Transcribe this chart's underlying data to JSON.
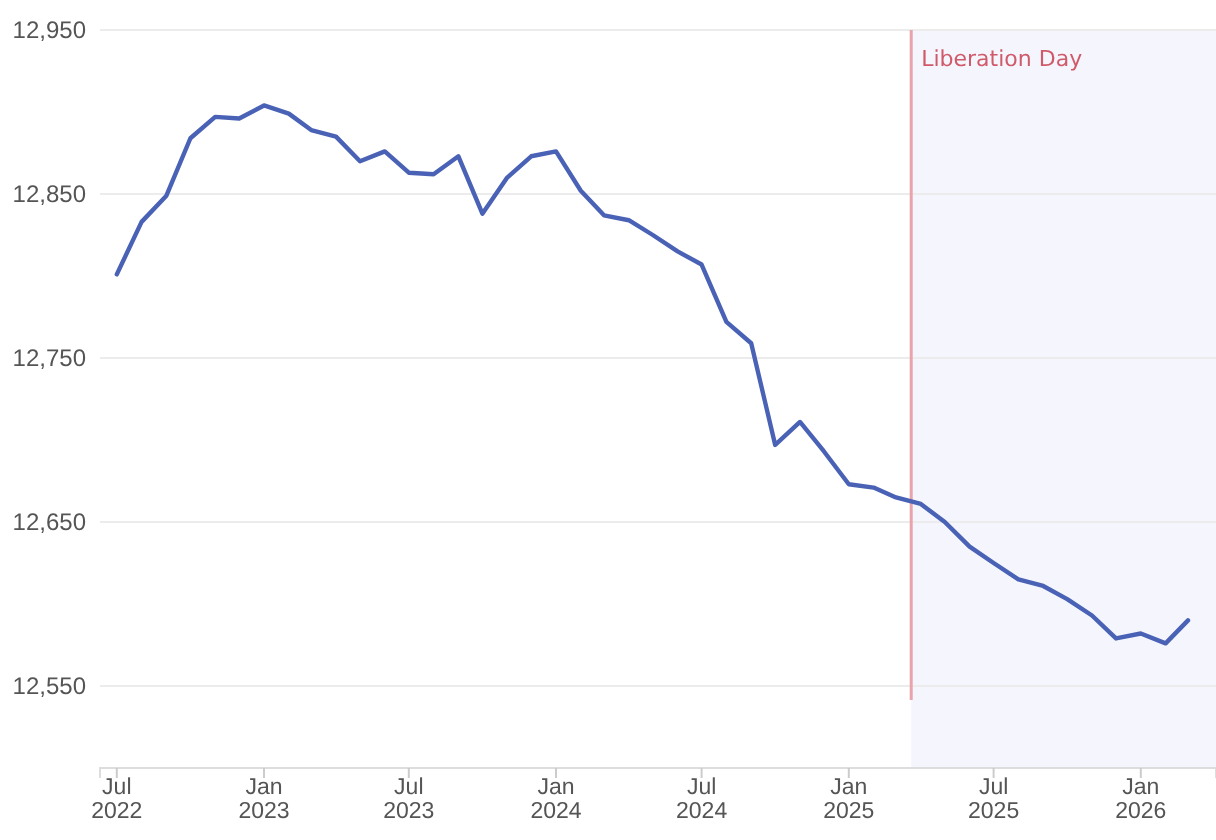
{
  "chart_data": {
    "type": "line",
    "x": [
      "2022-07",
      "2022-08",
      "2022-09",
      "2022-10",
      "2022-11",
      "2022-12",
      "2023-01",
      "2023-02",
      "2023-03",
      "2023-04",
      "2023-05",
      "2023-06",
      "2023-07",
      "2023-08",
      "2023-09",
      "2023-10",
      "2023-11",
      "2023-12",
      "2024-01",
      "2024-02",
      "2024-03",
      "2024-04",
      "2024-05",
      "2024-06",
      "2024-07",
      "2024-08",
      "2024-09",
      "2024-10",
      "2024-11",
      "2024-12",
      "2025-01",
      "2025-02",
      "2025-03",
      "2025-04",
      "2025-05",
      "2025-06",
      "2025-07",
      "2025-08",
      "2025-09",
      "2025-10",
      "2025-11",
      "2025-12",
      "2026-01",
      "2026-02",
      "2026-03"
    ],
    "series": [
      {
        "color": "#4a62b5",
        "values": [
          12801,
          12833,
          12849,
          12884,
          12897,
          12896,
          12904,
          12899,
          12889,
          12885,
          12870,
          12876,
          12863,
          12862,
          12873,
          12838,
          12860,
          12873,
          12876,
          12852,
          12837,
          12834,
          12825,
          12815,
          12807,
          12772,
          12759,
          12697,
          12711,
          12693,
          12673,
          12671,
          12665,
          12661,
          12650,
          12635,
          12625,
          12615,
          12611,
          12603,
          12593,
          12579,
          12582,
          12576,
          12590
        ]
      }
    ],
    "xlim": [
      "2022-06-10",
      "2026-04-05"
    ],
    "ylim": [
      12500,
      12950
    ],
    "xticks": [
      {
        "value": "2022-07",
        "label": "Jul 2022"
      },
      {
        "value": "2023-01",
        "label": "Jan 2023"
      },
      {
        "value": "2023-07",
        "label": "Jul 2023"
      },
      {
        "value": "2024-01",
        "label": "Jan 2024"
      },
      {
        "value": "2024-07",
        "label": "Jul 2024"
      },
      {
        "value": "2025-01",
        "label": "Jan 2025"
      },
      {
        "value": "2025-07",
        "label": "Jul 2025"
      },
      {
        "value": "2026-01",
        "label": "Jan 2026"
      }
    ],
    "yticks": [
      {
        "value": 12550,
        "label": "12,550"
      },
      {
        "value": 12650,
        "label": "12,650"
      },
      {
        "value": 12750,
        "label": "12,750"
      },
      {
        "value": 12850,
        "label": "12,850"
      },
      {
        "value": 12950,
        "label": "12,950"
      }
    ],
    "grid": "y",
    "marker": "none",
    "line_style": "solid",
    "ref_lines": [
      {
        "axis": "x",
        "value": "2025-03-20",
        "label": "Liberation Day",
        "color": "#e8a3ad"
      }
    ],
    "bands": [
      {
        "axis": "x",
        "from": "2025-03-20",
        "to": "2026-04-05",
        "color": "#f5f6fd"
      }
    ]
  }
}
